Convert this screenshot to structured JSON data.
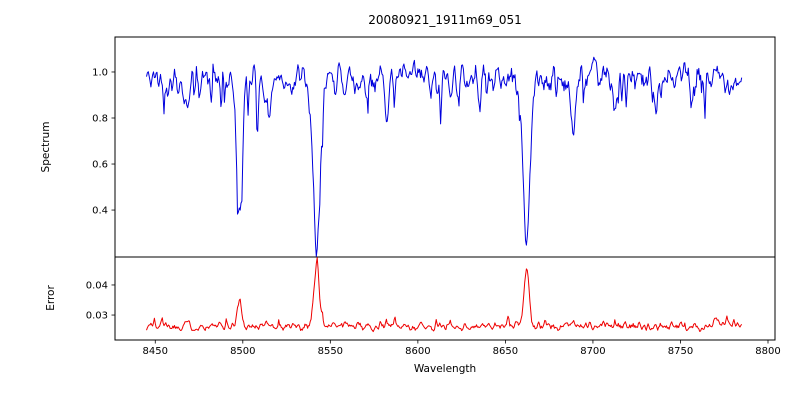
{
  "figure": {
    "background": "#ffffff",
    "text_color": "#000000"
  },
  "title": "20080921_1911m69_051",
  "xlabel": "Wavelength",
  "chart_data": [
    {
      "type": "line",
      "title": "20080921_1911m69_051",
      "ylabel": "Spectrum",
      "series_name": "spectrum",
      "color": "#0000dd",
      "xlim": [
        8427,
        8804
      ],
      "ylim": [
        0.196,
        1.152
      ],
      "yticks": [
        "0.4",
        "0.6",
        "0.8",
        "1.0"
      ],
      "x_start": 8445,
      "x_end": 8785,
      "x_step": 0.5,
      "continuum": 0.97,
      "noise_amplitude": 0.09,
      "spike_probability": 0.06,
      "spike_depth_range": [
        0.04,
        0.16
      ],
      "absorption_lines": [
        {
          "center": 8467.5,
          "depth": 0.13,
          "sigma": 1.2
        },
        {
          "center": 8498.0,
          "depth": 0.55,
          "sigma": 1.6
        },
        {
          "center": 8514.5,
          "depth": 0.17,
          "sigma": 1.2
        },
        {
          "center": 8542.1,
          "depth": 0.7,
          "sigma": 2.2
        },
        {
          "center": 8582.0,
          "depth": 0.11,
          "sigma": 1.2
        },
        {
          "center": 8611.5,
          "depth": 0.09,
          "sigma": 1.0
        },
        {
          "center": 8662.1,
          "depth": 0.67,
          "sigma": 2.0
        },
        {
          "center": 8688.5,
          "depth": 0.23,
          "sigma": 1.4
        },
        {
          "center": 8713.0,
          "depth": 0.11,
          "sigma": 1.0
        },
        {
          "center": 8736.0,
          "depth": 0.09,
          "sigma": 1.0
        },
        {
          "center": 8757.0,
          "depth": 0.11,
          "sigma": 1.1
        }
      ],
      "seed": 42
    },
    {
      "type": "line",
      "ylabel": "Error",
      "xlabel": "Wavelength",
      "series_name": "error",
      "color": "#ee0000",
      "xlim": [
        8427,
        8804
      ],
      "ylim": [
        0.0217,
        0.0493
      ],
      "yticks": [
        "0.03",
        "0.04"
      ],
      "xticks": [
        "8450",
        "8500",
        "8550",
        "8600",
        "8650",
        "8700",
        "8750",
        "8800"
      ],
      "x_start": 8445,
      "x_end": 8785,
      "x_step": 0.5,
      "baseline": 0.0262,
      "noise_amplitude": 0.0018,
      "spike_probability": 0.05,
      "spike_height_range": [
        0.0008,
        0.003
      ],
      "emission_peaks": [
        {
          "center": 8467.5,
          "height": 0.0018,
          "sigma": 1.2
        },
        {
          "center": 8498.0,
          "height": 0.0075,
          "sigma": 1.4
        },
        {
          "center": 8514.5,
          "height": 0.0015,
          "sigma": 1.2
        },
        {
          "center": 8542.1,
          "height": 0.02,
          "sigma": 1.6
        },
        {
          "center": 8662.1,
          "height": 0.02,
          "sigma": 1.5
        },
        {
          "center": 8688.5,
          "height": 0.0022,
          "sigma": 1.2
        },
        {
          "center": 8770.0,
          "height": 0.002,
          "sigma": 1.5
        }
      ],
      "seed": 1337
    }
  ]
}
